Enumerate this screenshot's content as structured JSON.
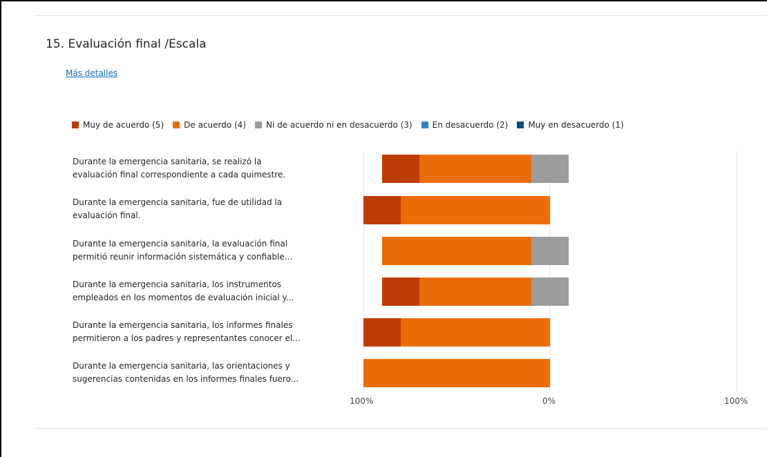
{
  "question": {
    "title": "15.  Evaluación final /Escala",
    "details_link": "Más detalles"
  },
  "colors": {
    "Muy de acuerdo (5)": "#bd3b05",
    "De acuerdo (4)": "#eb6d0a",
    "Ni de acuerdo ni en desacuerdo (3)": "#9c9c9c",
    "En desacuerdo (2)": "#2f80c3",
    "Muy en desacuerdo (1)": "#104b7d"
  },
  "chart_data": {
    "type": "bar",
    "orientation": "horizontal",
    "stacking": "diverging",
    "legend_position": "top",
    "grid": true,
    "xlim": [
      -100,
      100
    ],
    "tick_labels": [
      "100%",
      "0%",
      "100%"
    ],
    "categories": [
      {
        "line1": "Durante la emergencia sanitaria, se realizó la",
        "line2": "evaluación final correspondiente a cada quimestre."
      },
      {
        "line1": "Durante la emergencia sanitaria, fue de utilidad la",
        "line2": "evaluación final."
      },
      {
        "line1": "Durante la emergencia sanitaria, la evaluación final",
        "line2": "permitió reunir información sistemática y confiable..."
      },
      {
        "line1": "Durante la emergencia sanitaria, los instrumentos",
        "line2": "empleados en los momentos de evaluación inicial y..."
      },
      {
        "line1": "Durante la emergencia sanitaria, los informes finales",
        "line2": "permitieron a los padres y representantes conocer el..."
      },
      {
        "line1": "Durante la emergencia sanitaria, las orientaciones y",
        "line2": "sugerencias contenidas en los informes finales fuero..."
      }
    ],
    "series": [
      {
        "name": "Muy de acuerdo (5)",
        "values": [
          20,
          20,
          0,
          20,
          20,
          0
        ]
      },
      {
        "name": "De acuerdo (4)",
        "values": [
          60,
          80,
          80,
          60,
          80,
          100
        ]
      },
      {
        "name": "Ni de acuerdo ni en desacuerdo (3)",
        "values": [
          20,
          0,
          20,
          20,
          0,
          0
        ]
      },
      {
        "name": "En desacuerdo (2)",
        "values": [
          0,
          0,
          0,
          0,
          0,
          0
        ]
      },
      {
        "name": "Muy en desacuerdo (1)",
        "values": [
          0,
          0,
          0,
          0,
          0,
          0
        ]
      }
    ]
  }
}
